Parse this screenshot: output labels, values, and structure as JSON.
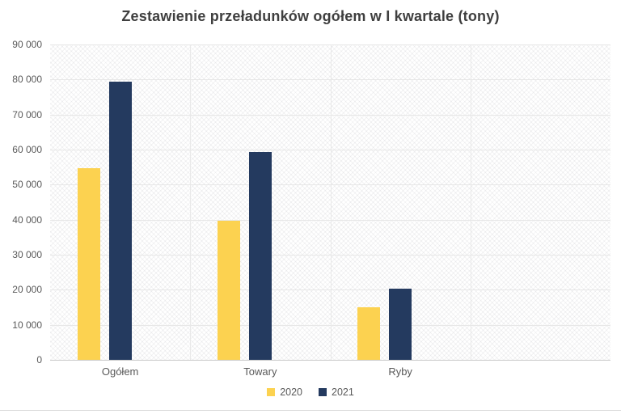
{
  "chart_data": {
    "type": "bar",
    "title": "Zestawienie przeładunków ogółem w I kwartale (tony)",
    "categories": [
      "Ogółem",
      "Towary",
      "Ryby"
    ],
    "series": [
      {
        "name": "2020",
        "color": "#FCD250",
        "values": [
          54700,
          39700,
          15100
        ]
      },
      {
        "name": "2021",
        "color": "#243A5F",
        "values": [
          79400,
          59300,
          20300
        ]
      }
    ],
    "ylim": [
      0,
      90000
    ],
    "ytick_step": 10000,
    "ytick_labels": [
      "0",
      "10 000",
      "20 000",
      "30 000",
      "40 000",
      "50 000",
      "60 000",
      "70 000",
      "80 000",
      "90 000"
    ],
    "xlabel": "",
    "ylabel": "",
    "grid": "horizontal",
    "legend_position": "bottom",
    "plot_background": "diagonal-crosshatch"
  }
}
